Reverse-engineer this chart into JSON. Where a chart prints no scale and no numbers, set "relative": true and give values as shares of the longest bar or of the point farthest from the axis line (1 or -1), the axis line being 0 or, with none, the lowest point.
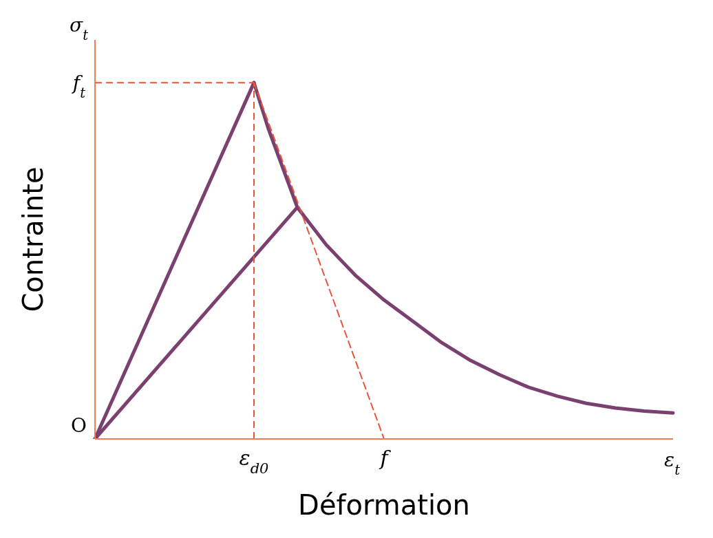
{
  "chart_data": {
    "type": "line",
    "relative": true,
    "xlabel": "Déformation",
    "ylabel": "Contrainte",
    "categories": [
      null,
      null,
      null,
      null,
      null,
      null,
      null,
      null,
      null,
      null,
      null,
      "ε$_{d0}$",
      null,
      null,
      null,
      null,
      null,
      null,
      null,
      null,
      "f",
      null,
      null,
      null,
      null,
      null,
      null,
      null,
      null,
      null,
      null,
      null,
      null,
      null,
      null,
      null,
      null,
      null,
      null,
      null,
      null
    ],
    "series": [
      {
        "color": "#7a4070",
        "values": [
          0,
          null,
          null,
          null,
          null,
          null,
          null,
          null,
          null,
          null,
          null,
          1,
          null,
          null,
          null,
          null,
          null,
          null,
          null,
          null,
          null,
          null,
          null,
          null,
          null,
          null,
          null,
          null,
          null,
          null,
          null,
          null,
          null,
          null,
          null,
          null,
          null,
          null,
          null,
          null,
          null
        ]
      },
      {
        "color": "#7a4070",
        "values": [
          0,
          null,
          null,
          null,
          null,
          null,
          null,
          null,
          null,
          null,
          null,
          null,
          null,
          null,
          0.65,
          null,
          null,
          null,
          null,
          null,
          null,
          null,
          null,
          null,
          null,
          null,
          null,
          null,
          null,
          null,
          null,
          null,
          null,
          null,
          null,
          null,
          null,
          null,
          null,
          null,
          null
        ]
      },
      {
        "color": "#7a4070",
        "values": [
          null,
          null,
          null,
          null,
          null,
          null,
          null,
          null,
          null,
          null,
          null,
          1,
          0.87,
          0.76,
          0.65,
          null,
          0.545,
          null,
          0.46,
          null,
          0.39,
          null,
          0.33,
          null,
          0.27,
          null,
          0.22,
          null,
          0.18,
          null,
          0.145,
          null,
          0.12,
          null,
          0.1,
          null,
          0.087,
          null,
          0.078,
          null,
          0.073
        ]
      },
      {
        "color": "#e8553a",
        "line_style": "dashed",
        "values": [
          null,
          null,
          null,
          null,
          null,
          null,
          null,
          null,
          null,
          null,
          null,
          1,
          null,
          null,
          null,
          null,
          null,
          null,
          null,
          null,
          0,
          null,
          null,
          null,
          null,
          null,
          null,
          null,
          null,
          null,
          null,
          null,
          null,
          null,
          null,
          null,
          null,
          null,
          null,
          null,
          null
        ]
      }
    ],
    "ref_lines": [
      {
        "axis": "y",
        "value": 1,
        "label": "f$_{t}$",
        "color": "#e8553a",
        "line_style": "dashed"
      },
      {
        "axis": "x",
        "value": "ε$_{d0}$",
        "color": "#e8553a",
        "line_style": "dashed"
      }
    ],
    "annotations": [
      "σ$_{t}$",
      "ε$_{t}$",
      "O"
    ],
    "marker": "none",
    "grid": false,
    "legend": false
  }
}
